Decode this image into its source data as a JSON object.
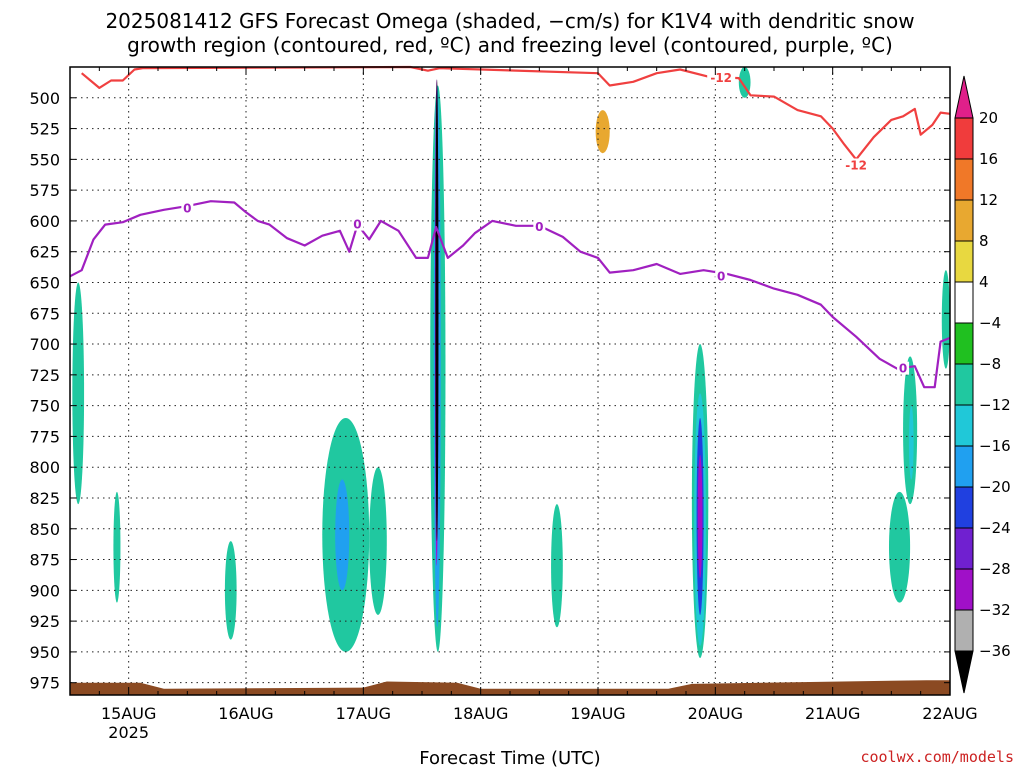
{
  "title": {
    "line1": "2025081412 GFS Forecast Omega (shaded, −cm/s) for K1V4 with dendritic snow",
    "line2": "growth region (contoured, red, ºC) and freezing level (contoured, purple, ºC)"
  },
  "credit": "coolwx.com/models",
  "chart_data": {
    "type": "heatmap",
    "title": "2025081412 GFS Forecast Omega (shaded, −cm/s) for K1V4 with dendritic snow growth region (contoured, red, ºC) and freezing level (contoured, purple, ºC)",
    "xlabel": "Forecast Time (UTC)",
    "ylabel": "",
    "x_range_days": [
      14.5,
      22.0
    ],
    "y_range_hpa": [
      475,
      985
    ],
    "y_scale": "linear",
    "grid": true,
    "x_ticks": [
      {
        "day": 15,
        "label": "15AUG",
        "sublabel": "2025"
      },
      {
        "day": 16,
        "label": "16AUG",
        "sublabel": ""
      },
      {
        "day": 17,
        "label": "17AUG",
        "sublabel": ""
      },
      {
        "day": 18,
        "label": "18AUG",
        "sublabel": ""
      },
      {
        "day": 19,
        "label": "19AUG",
        "sublabel": ""
      },
      {
        "day": 20,
        "label": "20AUG",
        "sublabel": ""
      },
      {
        "day": 21,
        "label": "21AUG",
        "sublabel": ""
      },
      {
        "day": 22,
        "label": "22AUG",
        "sublabel": ""
      }
    ],
    "y_ticks": [
      500,
      525,
      550,
      575,
      600,
      625,
      650,
      675,
      700,
      725,
      750,
      775,
      800,
      825,
      850,
      875,
      900,
      925,
      950,
      975
    ],
    "colorbar": {
      "levels": [
        20,
        16,
        12,
        8,
        4,
        -4,
        -8,
        -12,
        -16,
        -20,
        -24,
        -28,
        -32,
        -36
      ],
      "colors": [
        "#f03c3c",
        "#f07828",
        "#e8a830",
        "#e8d840",
        "#ffffff",
        "#20c020",
        "#20c8a0",
        "#20c8d8",
        "#20a0f0",
        "#2040e0",
        "#7020d0",
        "#a010c8",
        "#b0b0b0"
      ],
      "top_color": "#e0208a",
      "bottom_color": "#000000"
    },
    "omega_regions": [
      {
        "x0": 14.52,
        "x1": 14.62,
        "p0": 650,
        "p1": 830,
        "level": -8
      },
      {
        "x0": 14.85,
        "x1": 14.93,
        "p0": 650,
        "p1": 780,
        "level": 4
      },
      {
        "x0": 14.87,
        "x1": 14.93,
        "p0": 820,
        "p1": 910,
        "level": -8
      },
      {
        "x0": 15.82,
        "x1": 15.92,
        "p0": 860,
        "p1": 940,
        "level": -8
      },
      {
        "x0": 16.67,
        "x1": 16.81,
        "p0": 600,
        "p1": 730,
        "level": 4
      },
      {
        "x0": 16.65,
        "x1": 17.05,
        "p0": 760,
        "p1": 950,
        "level": -8
      },
      {
        "x0": 16.76,
        "x1": 16.88,
        "p0": 810,
        "p1": 900,
        "level": -16
      },
      {
        "x0": 17.05,
        "x1": 17.2,
        "p0": 800,
        "p1": 920,
        "level": -8
      },
      {
        "x0": 17.5,
        "x1": 17.58,
        "p0": 630,
        "p1": 760,
        "level": 4
      },
      {
        "x0": 17.57,
        "x1": 17.7,
        "p0": 490,
        "p1": 950,
        "level": -8
      },
      {
        "x0": 17.6,
        "x1": 17.66,
        "p0": 490,
        "p1": 930,
        "level": -16
      },
      {
        "x0": 17.61,
        "x1": 17.64,
        "p0": 485,
        "p1": 880,
        "level": -28
      },
      {
        "x0": 17.62,
        "x1": 17.635,
        "p0": 485,
        "p1": 860,
        "level": -36
      },
      {
        "x0": 17.7,
        "x1": 17.78,
        "p0": 840,
        "p1": 950,
        "level": 4
      },
      {
        "x0": 17.9,
        "x1": 18.02,
        "p0": 500,
        "p1": 720,
        "level": 4
      },
      {
        "x0": 18.0,
        "x1": 18.06,
        "p0": 650,
        "p1": 700,
        "level": 4
      },
      {
        "x0": 18.6,
        "x1": 18.7,
        "p0": 830,
        "p1": 930,
        "level": -8
      },
      {
        "x0": 18.95,
        "x1": 19.2,
        "p0": 490,
        "p1": 560,
        "level": 4
      },
      {
        "x0": 18.98,
        "x1": 19.1,
        "p0": 510,
        "p1": 545,
        "level": 12
      },
      {
        "x0": 19.8,
        "x1": 19.94,
        "p0": 700,
        "p1": 955,
        "level": -8
      },
      {
        "x0": 19.82,
        "x1": 19.92,
        "p0": 740,
        "p1": 945,
        "level": -12
      },
      {
        "x0": 19.84,
        "x1": 19.9,
        "p0": 760,
        "p1": 920,
        "level": -20
      },
      {
        "x0": 19.85,
        "x1": 19.89,
        "p0": 790,
        "p1": 890,
        "level": -28
      },
      {
        "x0": 19.78,
        "x1": 19.92,
        "p0": 475,
        "p1": 640,
        "level": 4
      },
      {
        "x0": 20.2,
        "x1": 20.3,
        "p0": 475,
        "p1": 500,
        "level": -8
      },
      {
        "x0": 20.35,
        "x1": 20.43,
        "p0": 790,
        "p1": 815,
        "level": 4
      },
      {
        "x0": 21.2,
        "x1": 21.28,
        "p0": 545,
        "p1": 625,
        "level": 4
      },
      {
        "x0": 21.4,
        "x1": 21.52,
        "p0": 475,
        "p1": 520,
        "level": 4
      },
      {
        "x0": 21.5,
        "x1": 21.62,
        "p0": 510,
        "p1": 640,
        "level": 4
      },
      {
        "x0": 21.48,
        "x1": 21.66,
        "p0": 820,
        "p1": 910,
        "level": -8
      },
      {
        "x0": 21.6,
        "x1": 21.72,
        "p0": 710,
        "p1": 830,
        "level": -8
      },
      {
        "x0": 21.65,
        "x1": 21.69,
        "p0": 750,
        "p1": 810,
        "level": -12
      },
      {
        "x0": 21.75,
        "x1": 21.84,
        "p0": 700,
        "p1": 740,
        "level": 4
      },
      {
        "x0": 21.93,
        "x1": 22.0,
        "p0": 640,
        "p1": 720,
        "level": -8
      }
    ],
    "contours": [
      {
        "label": "0",
        "color": "#a020c0",
        "label_points": [
          [
            15.5,
            590
          ],
          [
            16.95,
            603
          ],
          [
            18.5,
            605
          ],
          [
            20.05,
            645
          ],
          [
            21.6,
            720
          ]
        ],
        "points": [
          [
            14.5,
            645
          ],
          [
            14.6,
            640
          ],
          [
            14.7,
            615
          ],
          [
            14.8,
            603
          ],
          [
            14.95,
            601
          ],
          [
            15.1,
            595
          ],
          [
            15.3,
            591
          ],
          [
            15.5,
            588
          ],
          [
            15.7,
            584
          ],
          [
            15.9,
            585
          ],
          [
            16.0,
            593
          ],
          [
            16.1,
            600
          ],
          [
            16.2,
            603
          ],
          [
            16.35,
            614
          ],
          [
            16.5,
            620
          ],
          [
            16.65,
            612
          ],
          [
            16.8,
            608
          ],
          [
            16.88,
            625
          ],
          [
            16.95,
            603
          ],
          [
            17.05,
            615
          ],
          [
            17.15,
            600
          ],
          [
            17.3,
            608
          ],
          [
            17.45,
            630
          ],
          [
            17.55,
            630
          ],
          [
            17.62,
            605
          ],
          [
            17.72,
            630
          ],
          [
            17.85,
            620
          ],
          [
            17.95,
            610
          ],
          [
            18.1,
            600
          ],
          [
            18.3,
            604
          ],
          [
            18.5,
            604
          ],
          [
            18.7,
            613
          ],
          [
            18.85,
            625
          ],
          [
            19.0,
            630
          ],
          [
            19.1,
            642
          ],
          [
            19.3,
            640
          ],
          [
            19.5,
            635
          ],
          [
            19.7,
            643
          ],
          [
            19.9,
            640
          ],
          [
            20.1,
            643
          ],
          [
            20.3,
            648
          ],
          [
            20.5,
            655
          ],
          [
            20.7,
            660
          ],
          [
            20.9,
            668
          ],
          [
            21.0,
            678
          ],
          [
            21.2,
            694
          ],
          [
            21.4,
            712
          ],
          [
            21.55,
            720
          ],
          [
            21.7,
            718
          ],
          [
            21.78,
            735
          ],
          [
            21.87,
            735
          ],
          [
            21.92,
            698
          ],
          [
            22.0,
            695
          ]
        ]
      },
      {
        "label": "-12",
        "color": "#f04040",
        "label_points": [
          [
            20.05,
            484
          ],
          [
            21.2,
            555
          ]
        ],
        "points": [
          [
            14.6,
            480
          ],
          [
            14.75,
            492
          ],
          [
            14.85,
            486
          ],
          [
            14.95,
            486
          ],
          [
            15.05,
            477
          ],
          [
            15.12,
            476
          ],
          [
            17.4,
            475
          ],
          [
            17.55,
            478
          ],
          [
            17.65,
            476
          ],
          [
            19.0,
            480
          ],
          [
            19.1,
            490
          ],
          [
            19.3,
            487
          ],
          [
            19.5,
            480
          ],
          [
            19.7,
            477
          ],
          [
            19.95,
            483
          ],
          [
            20.2,
            484
          ],
          [
            20.3,
            498
          ],
          [
            20.5,
            499
          ],
          [
            20.7,
            510
          ],
          [
            20.9,
            515
          ],
          [
            21.0,
            525
          ],
          [
            21.1,
            538
          ],
          [
            21.2,
            550
          ],
          [
            21.35,
            532
          ],
          [
            21.5,
            518
          ],
          [
            21.6,
            515
          ],
          [
            21.7,
            509
          ],
          [
            21.75,
            530
          ],
          [
            21.85,
            522
          ],
          [
            21.92,
            512
          ],
          [
            22.0,
            513
          ]
        ]
      }
    ],
    "terrain": {
      "color": "#8b4a22",
      "points": [
        [
          14.5,
          975
        ],
        [
          15.1,
          975
        ],
        [
          15.3,
          980
        ],
        [
          17.0,
          979
        ],
        [
          17.2,
          974
        ],
        [
          17.8,
          975
        ],
        [
          18.0,
          980
        ],
        [
          19.6,
          980
        ],
        [
          19.8,
          976
        ],
        [
          21.8,
          973
        ],
        [
          22.0,
          973
        ]
      ]
    }
  }
}
